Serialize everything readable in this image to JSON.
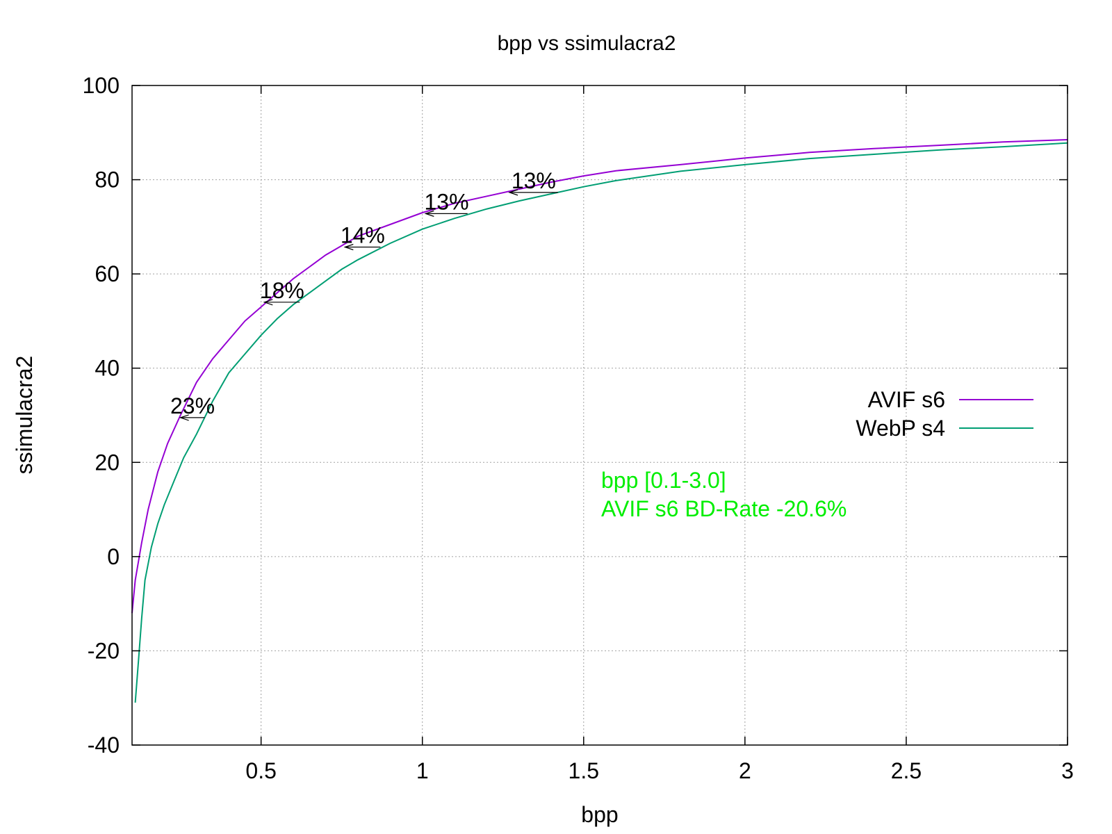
{
  "chart_data": {
    "type": "line",
    "title": "bpp vs ssimulacra2",
    "xlabel": "bpp",
    "ylabel": "ssimulacra2",
    "xlim": [
      0.1,
      3.0
    ],
    "ylim": [
      -40,
      100
    ],
    "xticks": [
      {
        "value": 0.5,
        "label": "0.5"
      },
      {
        "value": 1.0,
        "label": "1"
      },
      {
        "value": 1.5,
        "label": "1.5"
      },
      {
        "value": 2.0,
        "label": "2"
      },
      {
        "value": 2.5,
        "label": "2.5"
      },
      {
        "value": 3.0,
        "label": "3"
      }
    ],
    "yticks": [
      {
        "value": -40,
        "label": "-40"
      },
      {
        "value": -20,
        "label": "-20"
      },
      {
        "value": 0,
        "label": "0"
      },
      {
        "value": 20,
        "label": "20"
      },
      {
        "value": 40,
        "label": "40"
      },
      {
        "value": 60,
        "label": "60"
      },
      {
        "value": 80,
        "label": "80"
      },
      {
        "value": 100,
        "label": "100"
      }
    ],
    "grid": true,
    "legend_position": "right",
    "series": [
      {
        "name": "AVIF s6",
        "color": "#9400d3",
        "points": [
          [
            0.1,
            -12
          ],
          [
            0.11,
            -5
          ],
          [
            0.13,
            3
          ],
          [
            0.15,
            10
          ],
          [
            0.18,
            18
          ],
          [
            0.21,
            24
          ],
          [
            0.25,
            30
          ],
          [
            0.3,
            37
          ],
          [
            0.35,
            42
          ],
          [
            0.4,
            46
          ],
          [
            0.45,
            50
          ],
          [
            0.5,
            53
          ],
          [
            0.55,
            56
          ],
          [
            0.6,
            59
          ],
          [
            0.65,
            61.5
          ],
          [
            0.7,
            64
          ],
          [
            0.75,
            66
          ],
          [
            0.8,
            68
          ],
          [
            0.9,
            70.5
          ],
          [
            1.0,
            73
          ],
          [
            1.1,
            75
          ],
          [
            1.2,
            76.5
          ],
          [
            1.3,
            78
          ],
          [
            1.4,
            79.5
          ],
          [
            1.5,
            80.8
          ],
          [
            1.6,
            81.9
          ],
          [
            1.8,
            83.2
          ],
          [
            2.0,
            84.6
          ],
          [
            2.2,
            85.8
          ],
          [
            2.4,
            86.6
          ],
          [
            2.6,
            87.3
          ],
          [
            2.8,
            88.0
          ],
          [
            3.0,
            88.5
          ]
        ]
      },
      {
        "name": "WebP s4",
        "color": "#009e73",
        "points": [
          [
            0.11,
            -31
          ],
          [
            0.12,
            -22
          ],
          [
            0.13,
            -13
          ],
          [
            0.14,
            -5
          ],
          [
            0.16,
            2
          ],
          [
            0.18,
            7
          ],
          [
            0.2,
            11
          ],
          [
            0.23,
            16
          ],
          [
            0.26,
            21
          ],
          [
            0.3,
            26
          ],
          [
            0.35,
            33
          ],
          [
            0.4,
            39
          ],
          [
            0.45,
            43
          ],
          [
            0.5,
            47
          ],
          [
            0.55,
            50.5
          ],
          [
            0.6,
            53.5
          ],
          [
            0.65,
            56
          ],
          [
            0.7,
            58.5
          ],
          [
            0.75,
            61
          ],
          [
            0.8,
            63
          ],
          [
            0.9,
            66.5
          ],
          [
            1.0,
            69.5
          ],
          [
            1.1,
            71.8
          ],
          [
            1.2,
            73.8
          ],
          [
            1.3,
            75.5
          ],
          [
            1.4,
            77
          ],
          [
            1.5,
            78.5
          ],
          [
            1.6,
            79.8
          ],
          [
            1.8,
            81.8
          ],
          [
            2.0,
            83.2
          ],
          [
            2.2,
            84.5
          ],
          [
            2.4,
            85.4
          ],
          [
            2.6,
            86.3
          ],
          [
            2.8,
            87.0
          ],
          [
            3.0,
            87.8
          ]
        ]
      }
    ],
    "annotations": [
      {
        "label": "23%",
        "y": 29.5,
        "x_from": 0.325,
        "x_to": 0.25
      },
      {
        "label": "18%",
        "y": 54,
        "x_from": 0.62,
        "x_to": 0.51
      },
      {
        "label": "14%",
        "y": 65.7,
        "x_from": 0.87,
        "x_to": 0.76
      },
      {
        "label": "13%",
        "y": 72.8,
        "x_from": 1.14,
        "x_to": 1.01
      },
      {
        "label": "13%",
        "y": 77.3,
        "x_from": 1.42,
        "x_to": 1.27
      }
    ],
    "notes": [
      {
        "text": "bpp [0.1-3.0]",
        "color": "#00ee00"
      },
      {
        "text": "AVIF s6 BD-Rate -20.6%",
        "color": "#00ee00"
      }
    ]
  }
}
